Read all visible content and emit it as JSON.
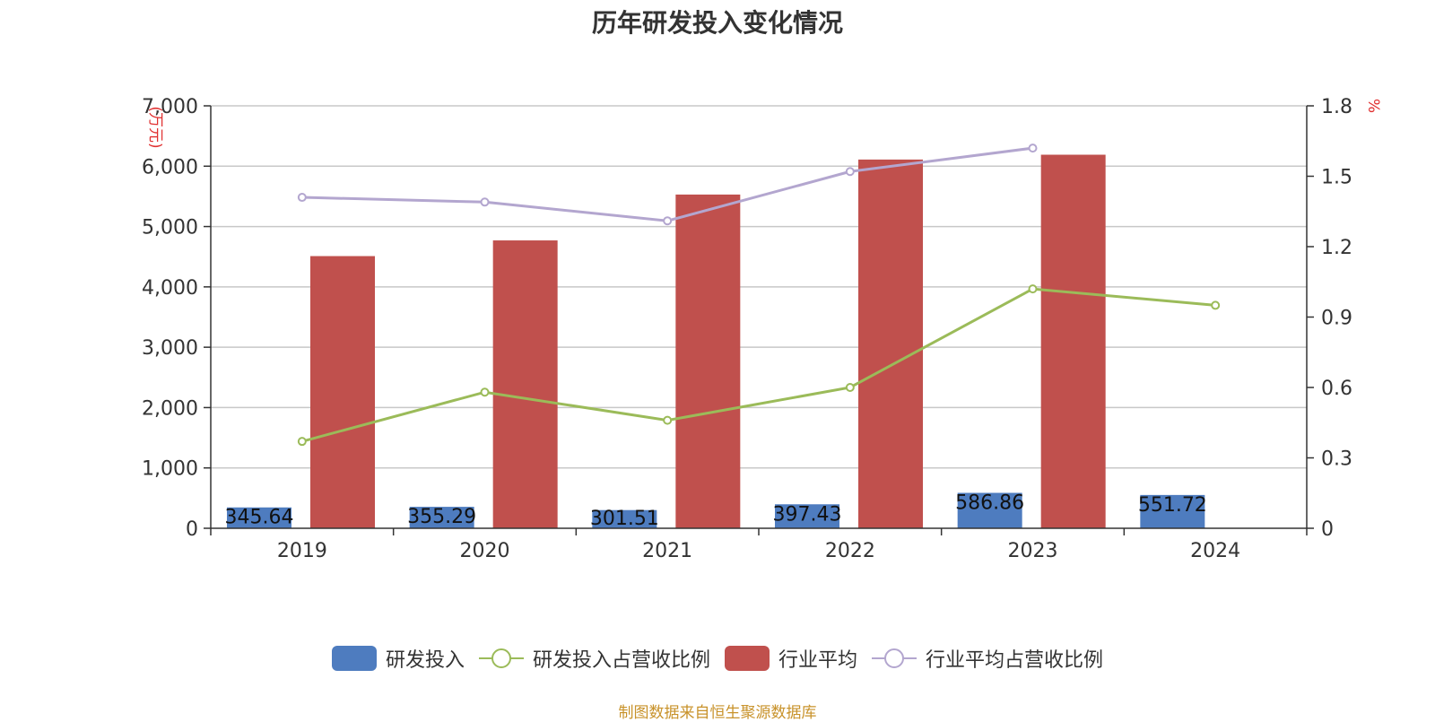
{
  "colors": {
    "rd": "#4e7cbf",
    "rd_ratio": "#9bbb59",
    "industry": "#c0504d",
    "industry_ratio": "#b3a6cf",
    "left_unit": "#e03030",
    "right_unit": "#e03030",
    "source": "#c8922a"
  },
  "chart_data": {
    "type": "bar",
    "title": "历年研发投入变化情况",
    "categories": [
      "2019",
      "2020",
      "2021",
      "2022",
      "2023",
      "2024"
    ],
    "y_left": {
      "label": "(万元)",
      "lim": [
        0,
        7000
      ],
      "ticks": [
        "0",
        "1,000",
        "2,000",
        "3,000",
        "4,000",
        "5,000",
        "6,000",
        "7,000"
      ]
    },
    "y_right": {
      "label": "%",
      "lim": [
        0,
        1.8
      ],
      "ticks": [
        "0",
        "0.3",
        "0.6",
        "0.9",
        "1.2",
        "1.5",
        "1.8"
      ]
    },
    "grid": true,
    "legend_position": "bottom",
    "series": [
      {
        "name": "研发投入",
        "type": "bar",
        "axis": "left",
        "values": [
          345.64,
          355.29,
          301.51,
          397.43,
          586.86,
          551.72
        ],
        "labels": [
          "345.64",
          "355.29",
          "301.51",
          "397.43",
          "586.86",
          "551.72"
        ]
      },
      {
        "name": "研发投入占营收比例",
        "type": "line",
        "axis": "right",
        "values": [
          0.37,
          0.58,
          0.46,
          0.6,
          1.02,
          0.95
        ]
      },
      {
        "name": "行业平均",
        "type": "bar",
        "axis": "left",
        "values": [
          4510,
          4770,
          5530,
          6110,
          6190,
          null
        ]
      },
      {
        "name": "行业平均占营收比例",
        "type": "line",
        "axis": "right",
        "values": [
          1.41,
          1.39,
          1.31,
          1.52,
          1.62,
          null
        ]
      }
    ]
  },
  "source_text": "制图数据来自恒生聚源数据库"
}
